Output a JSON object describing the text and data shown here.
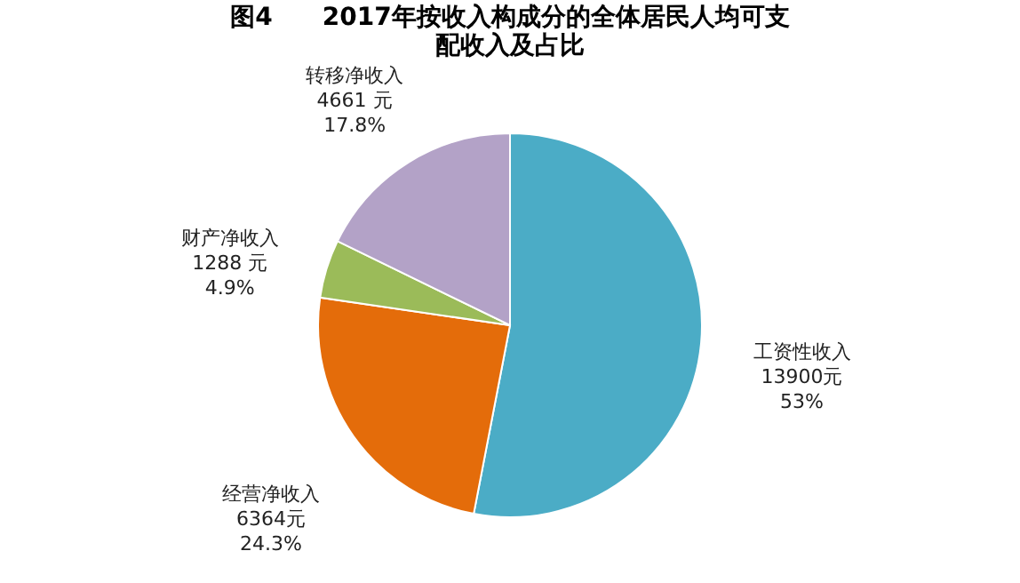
{
  "chart_data": {
    "type": "pie",
    "title": "图4　　2017年按收入构成分的全体居民人均可支配收入及占比",
    "categories": [
      "工资性收入",
      "经营净收入",
      "财产净收入",
      "转移净收入"
    ],
    "values": [
      13900,
      6364,
      1288,
      4661
    ],
    "value_labels": [
      "13900元\n53%",
      "6364元\n24.3%",
      "1288 元\n4.9%",
      "4661 元\n17.8%"
    ],
    "colors": [
      "#4bacc6",
      "#e46c0a",
      "#9bbb59",
      "#b3a2c7"
    ],
    "legend": false
  }
}
